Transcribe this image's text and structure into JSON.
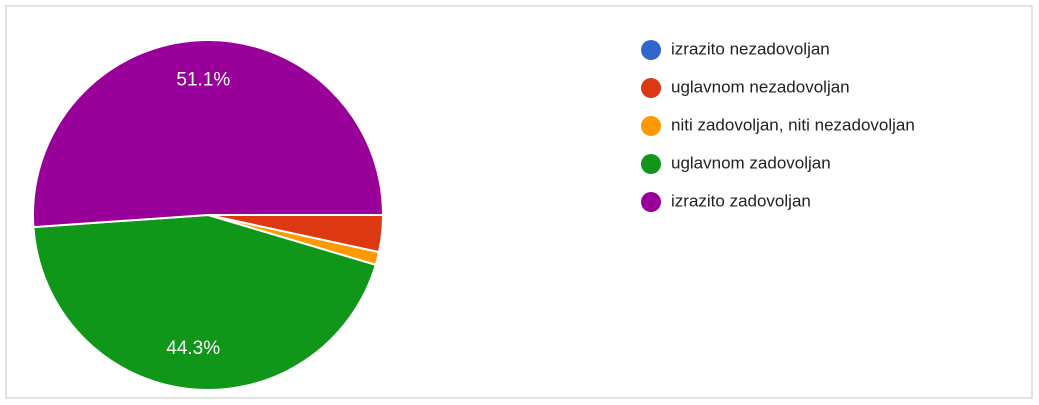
{
  "chart_data": {
    "type": "pie",
    "categories": [
      "izrazito nezadovoljan",
      "uglavnom nezadovoljan",
      "niti zadovoljan, niti nezadovoljan",
      "uglavnom zadovoljan",
      "izrazito zadovoljan"
    ],
    "values": [
      0,
      3.4,
      1.2,
      44.3,
      51.1
    ],
    "value_labels": [
      null,
      null,
      null,
      "44.3%",
      "51.1%"
    ],
    "colors": [
      "#3366cc",
      "#dc3912",
      "#ff9900",
      "#109618",
      "#990099"
    ],
    "legend": "right"
  }
}
